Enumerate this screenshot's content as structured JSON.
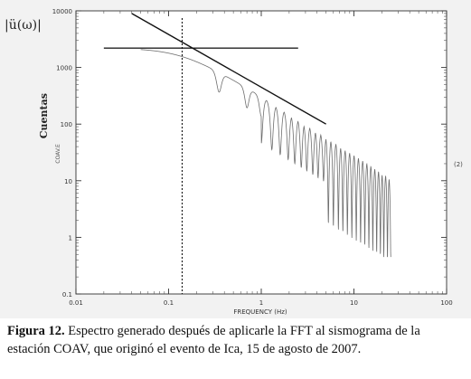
{
  "chart_data": {
    "type": "line",
    "xscale": "log",
    "yscale": "log",
    "xlim": [
      0.01,
      100
    ],
    "ylim": [
      0.1,
      10000
    ],
    "x_ticks": [
      "0.01",
      "0.1",
      "1",
      "10",
      "100"
    ],
    "y_ticks": [
      "10000",
      "1000",
      "100",
      "10",
      "1",
      "0.1"
    ],
    "xlabel": "FREQUENCY (Hz)",
    "ylabel": "Cuentas",
    "ylabel_small": "COAV.E",
    "left_axis_label": "|ü(ω)|",
    "right_label": "(2)",
    "flat_line": {
      "x": [
        0.02,
        2.5
      ],
      "y": 2200
    },
    "corner_frequency": 0.14,
    "decay_line": {
      "x": [
        0.04,
        5
      ],
      "y": [
        9000,
        100
      ]
    },
    "spectrum_x_range": [
      0.05,
      25
    ],
    "spectrum_trough_hz": [
      0.35,
      0.7,
      1.0,
      1.3,
      1.6,
      1.95,
      2.3,
      2.7,
      3.1,
      3.6,
      4.1,
      4.7,
      5.3,
      6.0,
      6.8,
      7.6,
      8.5,
      9.5,
      10.6,
      11.8,
      13.1,
      14.5,
      16,
      17.6,
      19.3,
      21,
      23,
      25
    ]
  },
  "caption": {
    "label": "Figura 12.",
    "text": " Espectro generado después de aplicarle la FFT al sismograma de la estación COAV, que originó el evento de Ica, 15 de agosto de 2007."
  }
}
